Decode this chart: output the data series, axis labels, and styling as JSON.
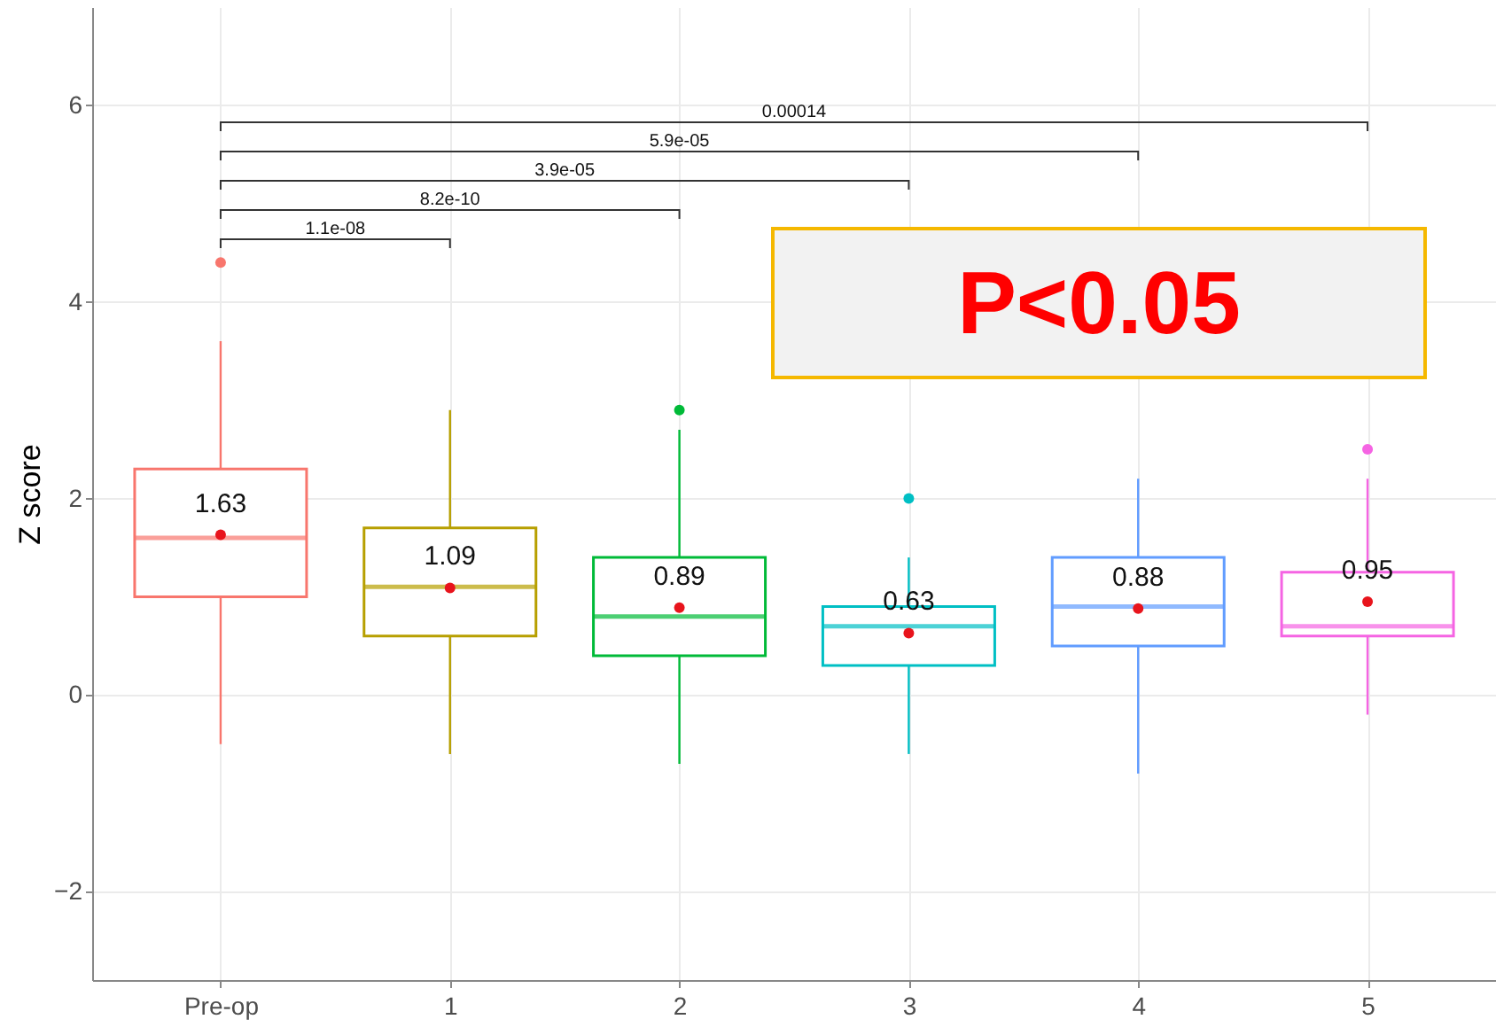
{
  "chart_data": {
    "type": "box",
    "ylabel": "Z score",
    "categories": [
      "Pre-op",
      "1",
      "2",
      "3",
      "4",
      "5"
    ],
    "colors": [
      "#f8766d",
      "#b79f00",
      "#00ba38",
      "#00bfc4",
      "#619cff",
      "#f564e3"
    ],
    "boxes": [
      {
        "low": -0.5,
        "q1": 1.0,
        "median": 1.6,
        "q3": 2.3,
        "high": 3.6,
        "mean": 1.63,
        "outliers": [
          4.4
        ]
      },
      {
        "low": -0.6,
        "q1": 0.6,
        "median": 1.1,
        "q3": 1.7,
        "high": 2.9,
        "mean": 1.09
      },
      {
        "low": -0.7,
        "q1": 0.4,
        "median": 0.8,
        "q3": 1.4,
        "high": 2.7,
        "mean": 0.89,
        "outliers": [
          2.9
        ]
      },
      {
        "low": -0.6,
        "q1": 0.3,
        "median": 0.7,
        "q3": 0.9,
        "high": 1.4,
        "mean": 0.63,
        "outliers": [
          2.0
        ]
      },
      {
        "low": -0.8,
        "q1": 0.5,
        "median": 0.9,
        "q3": 1.4,
        "high": 2.2,
        "mean": 0.88
      },
      {
        "low": -0.2,
        "q1": 0.6,
        "median": 0.7,
        "q3": 1.25,
        "high": 2.2,
        "mean": 0.95,
        "outliers": [
          2.5
        ]
      }
    ],
    "value_labels": [
      "1.63",
      "1.09",
      "0.89",
      "0.63",
      "0.88",
      "0.95"
    ],
    "ylim": [
      -2.9,
      7
    ],
    "yticks": [
      -2,
      0,
      2,
      4,
      6
    ],
    "grid": true,
    "annotations": [
      "0.00014",
      "5.9e-05",
      "3.9e-05",
      "8.2e-10",
      "1.1e-08",
      "P<0.05"
    ]
  }
}
